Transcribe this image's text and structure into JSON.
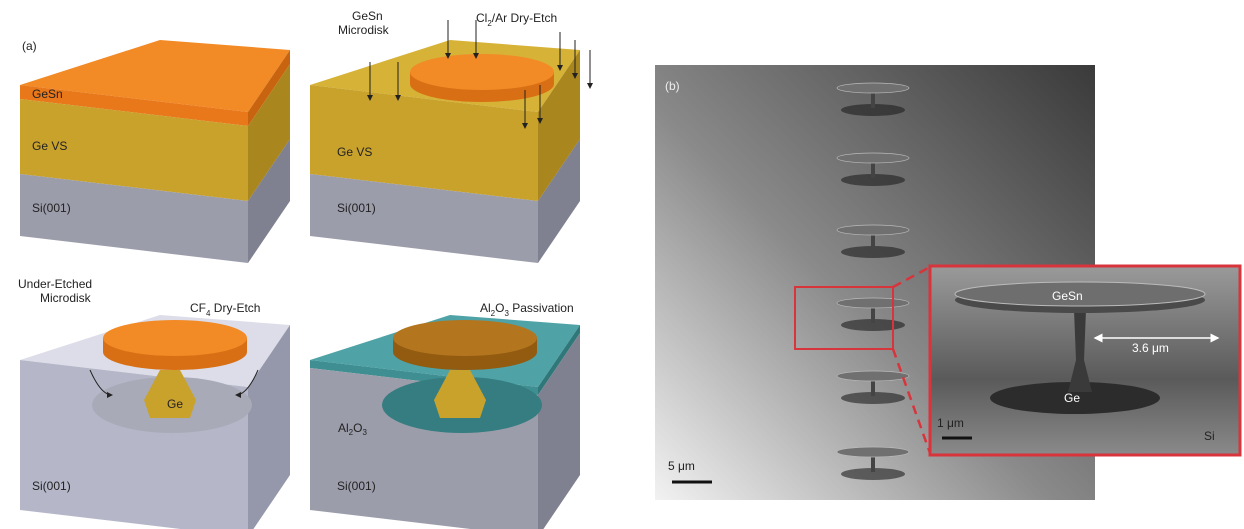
{
  "panel_a": {
    "label": "(a)",
    "step1": {
      "top": "GeSn",
      "middle": "Ge VS",
      "bottom": "Si(001)"
    },
    "step2": {
      "callout": [
        "GeSn",
        "Microdisk"
      ],
      "process": [
        "Cl",
        "2",
        "/Ar Dry-Etch"
      ],
      "middle": "Ge VS",
      "bottom": "Si(001)"
    },
    "step3": {
      "callout": [
        "Under-Etched",
        "Microdisk"
      ],
      "process": [
        "CF",
        "4",
        " Dry-Etch"
      ],
      "pillar": "Ge",
      "bottom": "Si(001)"
    },
    "step4": {
      "process": [
        "Al",
        "2",
        "O",
        "3",
        " Passivation"
      ],
      "layer": [
        "Al",
        "2",
        "O",
        "3"
      ],
      "bottom": "Si(001)"
    }
  },
  "panel_b": {
    "label": "(b)",
    "scale_bar": "5 μm",
    "inset": {
      "disk": "GeSn",
      "width": "3.6 μm",
      "pillar": "Ge",
      "scale_bar": "1 μm",
      "substrate": "Si"
    }
  }
}
